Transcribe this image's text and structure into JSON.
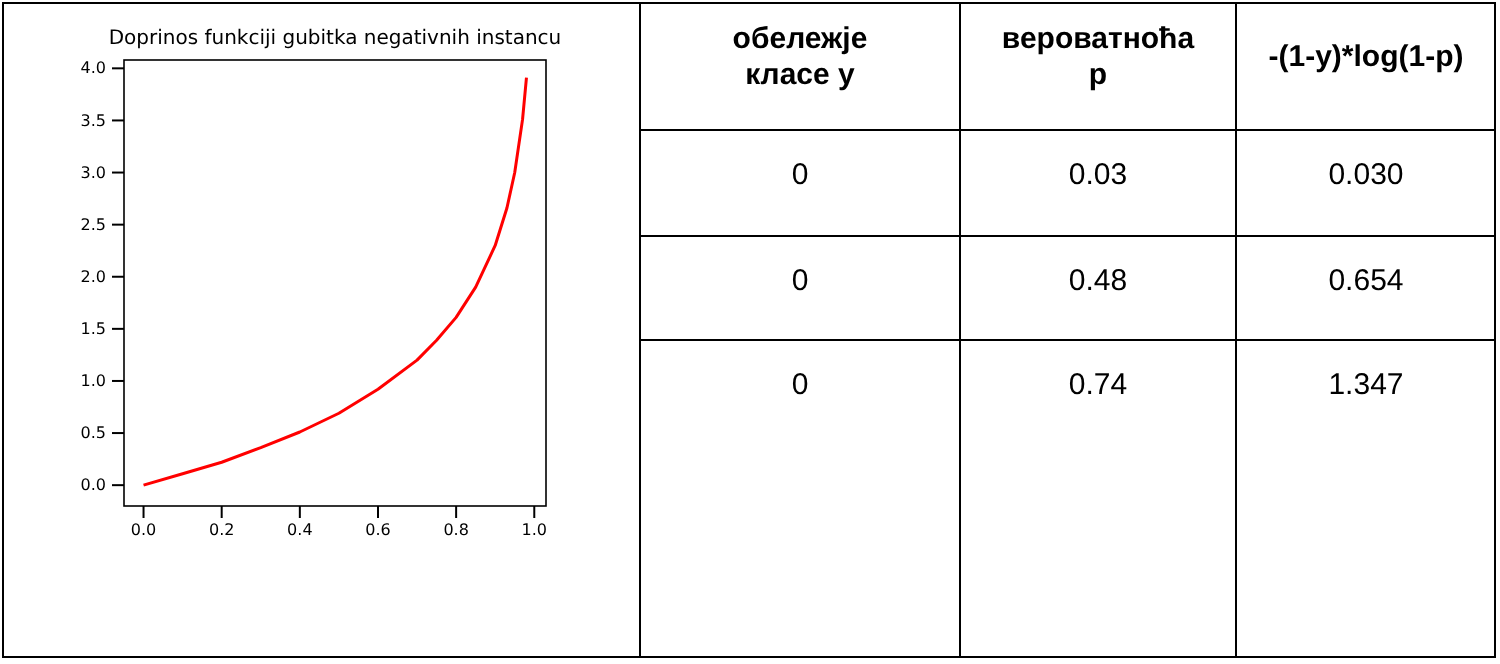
{
  "chart_data": [
    {
      "type": "line",
      "title": "Doprinos funkciji gubitka negativnih instancu",
      "x": [
        0,
        0.1,
        0.2,
        0.3,
        0.4,
        0.5,
        0.6,
        0.7,
        0.75,
        0.8,
        0.85,
        0.9,
        0.93,
        0.95,
        0.97,
        0.98
      ],
      "series": [
        {
          "color": "#ff0000",
          "values": [
            0,
            0.11,
            0.22,
            0.36,
            0.51,
            0.69,
            0.92,
            1.2,
            1.39,
            1.61,
            1.9,
            2.3,
            2.66,
            3.0,
            3.51,
            3.91
          ]
        }
      ],
      "xlim": [
        -0.05,
        1.03
      ],
      "ylim": [
        -0.2,
        4.08
      ],
      "xticks": [
        {
          "value": 0,
          "label": "0.0"
        },
        {
          "value": 0.2,
          "label": "0.2"
        },
        {
          "value": 0.4,
          "label": "0.4"
        },
        {
          "value": 0.6,
          "label": "0.6"
        },
        {
          "value": 0.8,
          "label": "0.8"
        },
        {
          "value": 1,
          "label": "1.0"
        }
      ],
      "yticks": [
        {
          "value": 0,
          "label": "0.0"
        },
        {
          "value": 0.5,
          "label": "0.5"
        },
        {
          "value": 1,
          "label": "1.0"
        },
        {
          "value": 1.5,
          "label": "1.5"
        },
        {
          "value": 2,
          "label": "2.0"
        },
        {
          "value": 2.5,
          "label": "2.5"
        },
        {
          "value": 3,
          "label": "3.0"
        },
        {
          "value": 3.5,
          "label": "3.5"
        },
        {
          "value": 4,
          "label": "4.0"
        }
      ],
      "grid": false,
      "marker": "none",
      "line_style": "solid"
    },
    {
      "type": "other",
      "annotations": [
        "обележје класе y",
        "вероватноћа p",
        "-(1-y)*log(1-p)",
        "0",
        "0.03",
        "0.030",
        "0",
        "0.48",
        "0.654",
        "0",
        "0.74",
        "1.347"
      ]
    }
  ]
}
